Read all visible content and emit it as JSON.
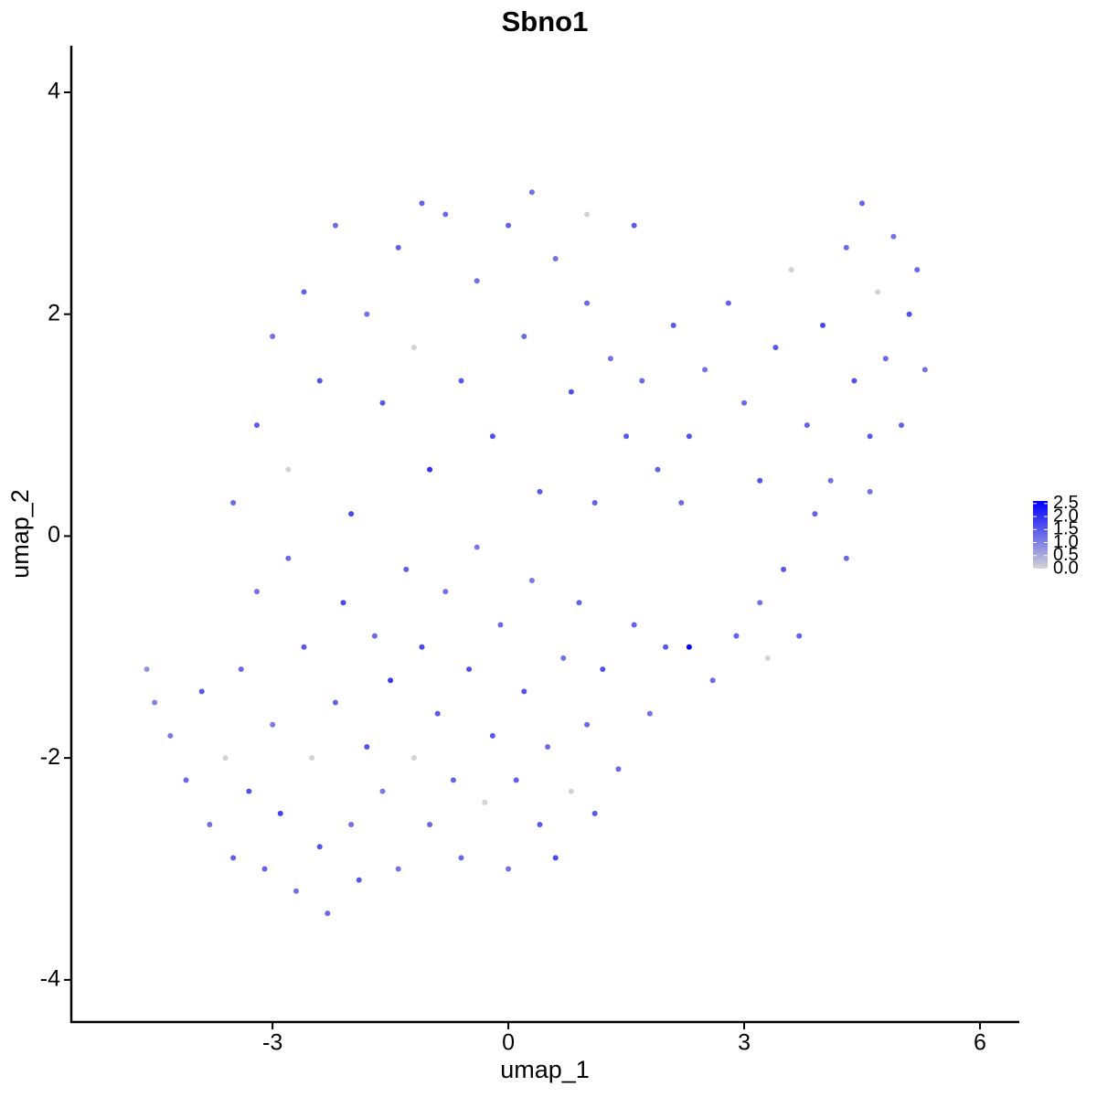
{
  "chart_data": {
    "type": "scatter",
    "title": "Sbno1",
    "x_label": "umap_1",
    "y_label": "umap_2",
    "x": [
      -4.6,
      -4.5,
      -4.3,
      -4.1,
      -3.9,
      -3.8,
      -3.6,
      -3.5,
      -3.4,
      -3.3,
      -3.2,
      -3.1,
      -3.0,
      -2.9,
      -2.8,
      -2.7,
      -2.6,
      -2.5,
      -2.4,
      -2.3,
      -2.2,
      -2.1,
      -2.0,
      -1.9,
      -1.8,
      -1.7,
      -1.6,
      -1.5,
      -1.4,
      -1.3,
      -1.2,
      -1.1,
      -1.0,
      -0.9,
      -0.8,
      -0.7,
      -0.6,
      -0.5,
      -0.4,
      -0.3,
      -0.2,
      -0.1,
      0,
      0.1,
      0.2,
      0.3,
      0.4,
      0.5,
      0.6,
      0.7,
      0.8,
      0.9,
      1.0,
      1.1,
      1.2,
      1.4,
      1.6,
      1.8,
      2.0,
      2.3,
      2.6,
      2.9,
      3.2,
      3.5,
      3.9,
      4.3,
      4.6,
      -3.5,
      -3.2,
      -3.0,
      -2.8,
      -2.6,
      -2.4,
      -2.2,
      -2.0,
      -1.8,
      -1.6,
      -1.4,
      -1.2,
      -1.0,
      -0.8,
      -0.6,
      -0.4,
      -0.2,
      0,
      0.2,
      0.4,
      0.6,
      0.8,
      1.0,
      1.1,
      1.3,
      1.5,
      1.0,
      1.7,
      1.9,
      2.1,
      2.3,
      2.5,
      2.8,
      3.0,
      3.2,
      3.4,
      3.6,
      3.8,
      4.0,
      4.1,
      4.3,
      4.4,
      4.5,
      4.6,
      4.7,
      4.8,
      4.9,
      5.0,
      5.1,
      5.2,
      5.3,
      3.7,
      3.3,
      2.2,
      1.6,
      0.3,
      -1.1
    ],
    "y": [
      -1.2,
      -1.5,
      -1.8,
      -2.2,
      -1.4,
      -2.6,
      -2.0,
      -2.9,
      -1.2,
      -2.3,
      -0.5,
      -3.0,
      -1.7,
      -2.5,
      -0.2,
      -3.2,
      -1.0,
      -2.0,
      -2.8,
      -3.4,
      -1.5,
      -0.6,
      -2.6,
      -3.1,
      -1.9,
      -0.9,
      -2.3,
      -1.3,
      -3.0,
      -0.3,
      -2.0,
      -1.0,
      -2.6,
      -1.6,
      -0.5,
      -2.2,
      -2.9,
      -1.2,
      -0.1,
      -2.4,
      -1.8,
      -0.8,
      -3.0,
      -2.2,
      -1.4,
      -0.4,
      -2.6,
      -1.9,
      -2.9,
      -1.1,
      -2.3,
      -0.6,
      -1.7,
      -2.5,
      -1.2,
      -2.1,
      -0.8,
      -1.6,
      -1.0,
      -1.0,
      -1.3,
      -0.9,
      -0.6,
      -0.3,
      0.2,
      -0.2,
      0.4,
      0.3,
      1.0,
      1.8,
      0.6,
      2.2,
      1.4,
      2.8,
      0.2,
      2.0,
      1.2,
      2.6,
      1.7,
      0.6,
      2.9,
      1.4,
      2.3,
      0.9,
      2.8,
      1.8,
      0.4,
      2.5,
      1.3,
      2.1,
      0.3,
      1.6,
      0.9,
      2.9,
      1.4,
      0.6,
      1.9,
      0.9,
      1.5,
      2.1,
      1.2,
      0.5,
      1.7,
      2.4,
      1.0,
      1.9,
      0.5,
      2.6,
      1.4,
      3.0,
      0.9,
      2.2,
      1.6,
      2.7,
      1.0,
      2.0,
      2.4,
      1.5,
      -0.9,
      -1.1,
      0.3,
      2.8,
      3.1,
      3.0
    ],
    "values": [
      0.8,
      1.0,
      1.1,
      1.3,
      1.5,
      1.2,
      0,
      1.4,
      1.3,
      1.6,
      1.2,
      1.4,
      1.1,
      1.8,
      1.3,
      1.2,
      1.5,
      0,
      1.6,
      1.3,
      1.4,
      1.7,
      1.2,
      1.5,
      1.6,
      1.3,
      1.1,
      1.9,
      1.2,
      1.4,
      0,
      1.7,
      1.3,
      1.5,
      1.2,
      1.4,
      1.3,
      1.6,
      1.1,
      0,
      1.5,
      1.3,
      1.2,
      1.4,
      1.6,
      1.1,
      1.5,
      1.3,
      1.7,
      1.2,
      0,
      1.4,
      1.3,
      1.5,
      1.6,
      1.3,
      1.4,
      1.2,
      1.5,
      2.6,
      1.3,
      1.4,
      1.2,
      1.5,
      1.4,
      1.3,
      1.2,
      1.3,
      1.5,
      1.2,
      0,
      1.4,
      1.6,
      1.3,
      1.7,
      1.2,
      1.5,
      1.4,
      0,
      2.0,
      1.3,
      1.5,
      1.2,
      1.6,
      1.4,
      1.3,
      1.5,
      1.2,
      1.6,
      1.3,
      1.4,
      1.2,
      1.5,
      0,
      1.3,
      1.4,
      1.5,
      1.6,
      1.2,
      1.4,
      1.3,
      1.6,
      1.5,
      0,
      1.4,
      1.7,
      1.2,
      1.3,
      1.6,
      1.4,
      1.5,
      0,
      1.3,
      1.2,
      1.4,
      1.6,
      1.3,
      1.2,
      1.4,
      0,
      1.3,
      1.5,
      1.2,
      1.4
    ],
    "xlim": [
      -5.56,
      6.5
    ],
    "ylim": [
      -4.38,
      4.42
    ],
    "xticks": [
      -3,
      0,
      3,
      6
    ],
    "yticks": [
      -4,
      -2,
      0,
      2,
      4
    ],
    "colorbar": {
      "lim": [
        0,
        2.6
      ],
      "low_color": "#d3d3d3",
      "high_color": "#0000ff",
      "ticks": [
        {
          "value": 0,
          "label": "0.0"
        },
        0.5,
        {
          "value": 1,
          "label": "1.0"
        },
        1.5,
        {
          "value": 2,
          "label": "2.0"
        },
        2.5
      ]
    }
  }
}
